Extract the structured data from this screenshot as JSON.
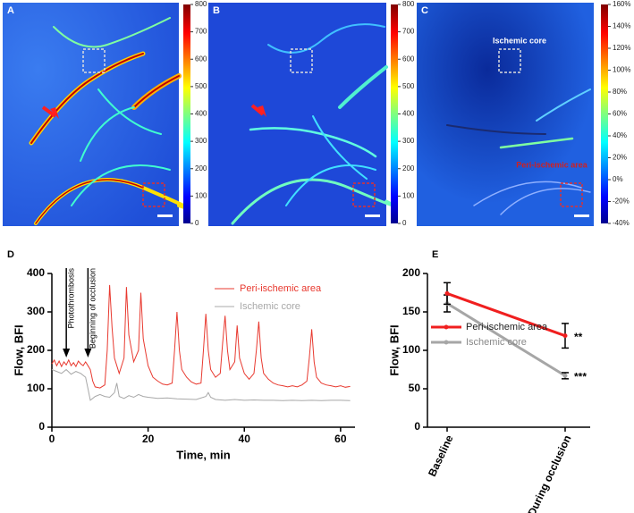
{
  "image_panels": [
    {
      "panel_label": "A",
      "colorbar_ticks": [
        0,
        100,
        200,
        300,
        400,
        500,
        600,
        700,
        800
      ]
    },
    {
      "panel_label": "B",
      "colorbar_ticks": [
        0,
        100,
        200,
        300,
        400,
        500,
        600,
        700,
        800
      ]
    },
    {
      "panel_label": "C",
      "region_labels": [
        "Ischemic core",
        "Peri-ischemic area"
      ],
      "colorbar_ticks": [
        {
          "value": -40,
          "label": "-40%"
        },
        {
          "value": -20,
          "label": "-20%"
        },
        {
          "value": 0,
          "label": "0%"
        },
        {
          "value": 20,
          "label": "20%"
        },
        {
          "value": 40,
          "label": "40%"
        },
        {
          "value": 60,
          "label": "60%"
        },
        {
          "value": 80,
          "label": "80%"
        },
        {
          "value": 100,
          "label": "100%"
        },
        {
          "value": 120,
          "label": "120%"
        },
        {
          "value": 140,
          "label": "140%"
        },
        {
          "value": 160,
          "label": "160%"
        }
      ]
    }
  ],
  "chart_data": [
    {
      "type": "line",
      "panel_label": "D",
      "x_label": "Time, min",
      "y_label": "Flow, BFI",
      "xlim": [
        0,
        63
      ],
      "ylim": [
        0,
        400
      ],
      "xticks": [
        0,
        20,
        40,
        60
      ],
      "yticks": [
        0,
        100,
        200,
        300,
        400
      ],
      "annotations": [
        {
          "text": "Photothrombosis",
          "x": 3
        },
        {
          "text": "Beginning of occlusion",
          "x": 7.5
        }
      ],
      "series": [
        {
          "name": "Peri-ischemic area",
          "color": "#e8392f",
          "x": [
            0,
            0.5,
            1,
            1.5,
            2,
            2.5,
            3,
            3.5,
            4,
            4.5,
            5,
            5.5,
            6,
            6.5,
            7,
            7.5,
            8,
            8.5,
            9,
            10,
            11,
            11.5,
            12,
            12.5,
            13,
            14,
            15,
            15.5,
            16,
            17,
            18,
            18.5,
            19,
            20,
            21,
            22,
            23,
            24,
            25,
            25.5,
            26,
            26.5,
            27,
            28,
            29,
            30,
            31,
            31.5,
            32,
            32.5,
            33,
            34,
            35,
            35.5,
            36,
            36.5,
            37,
            38,
            38.5,
            39,
            40,
            41,
            42,
            42.5,
            43,
            43.5,
            44,
            45,
            46,
            47,
            48,
            49,
            50,
            51,
            52,
            53,
            53.5,
            54,
            54.5,
            55,
            56,
            57,
            58,
            59,
            60,
            61,
            62
          ],
          "values": [
            165,
            175,
            160,
            172,
            158,
            170,
            162,
            175,
            160,
            168,
            158,
            172,
            165,
            160,
            170,
            160,
            150,
            120,
            105,
            102,
            110,
            200,
            370,
            260,
            180,
            140,
            180,
            365,
            240,
            170,
            200,
            350,
            230,
            160,
            130,
            120,
            112,
            110,
            115,
            200,
            300,
            200,
            150,
            130,
            118,
            112,
            115,
            200,
            295,
            200,
            150,
            130,
            140,
            220,
            290,
            200,
            150,
            170,
            265,
            180,
            140,
            125,
            140,
            200,
            275,
            180,
            140,
            125,
            115,
            110,
            108,
            105,
            108,
            105,
            110,
            120,
            180,
            255,
            170,
            130,
            115,
            110,
            108,
            105,
            108,
            104,
            106
          ]
        },
        {
          "name": "Ischemic core",
          "color": "#a8a8a8",
          "x": [
            0,
            1,
            2,
            3,
            4,
            5,
            6,
            7,
            7.5,
            8,
            9,
            10,
            11,
            12,
            13,
            13.5,
            14,
            15,
            16,
            17,
            18,
            19,
            20,
            22,
            24,
            26,
            28,
            30,
            32,
            32.5,
            33,
            34,
            36,
            38,
            40,
            42,
            44,
            46,
            48,
            50,
            52,
            54,
            56,
            58,
            60,
            62
          ],
          "values": [
            150,
            145,
            140,
            150,
            138,
            145,
            140,
            130,
            100,
            70,
            80,
            85,
            80,
            78,
            90,
            115,
            80,
            75,
            82,
            78,
            85,
            80,
            78,
            75,
            76,
            74,
            73,
            72,
            80,
            90,
            78,
            72,
            70,
            72,
            70,
            71,
            70,
            70,
            69,
            70,
            69,
            70,
            69,
            70,
            70,
            69
          ]
        }
      ]
    },
    {
      "type": "errorbar-line",
      "panel_label": "E",
      "y_label": "Flow, BFI",
      "categories": [
        "Baseline",
        "During occlusion"
      ],
      "ylim": [
        0,
        200
      ],
      "yticks": [
        0,
        50,
        100,
        150,
        200
      ],
      "series": [
        {
          "name": "Peri-ischemic area",
          "color": "#f01f1f",
          "values": [
            174,
            119
          ],
          "errors": [
            14,
            16
          ],
          "significance": [
            null,
            "**"
          ]
        },
        {
          "name": "Ischemic core",
          "color": "#a6a6a6",
          "values": [
            161,
            67
          ],
          "errors": [
            11,
            4
          ],
          "significance": [
            null,
            "***"
          ]
        }
      ]
    }
  ]
}
